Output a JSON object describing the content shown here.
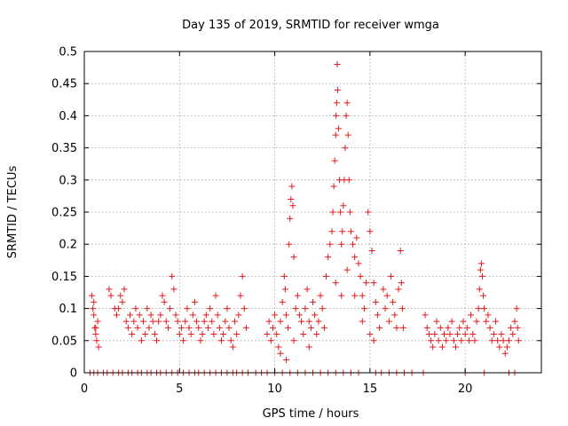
{
  "chart_data": {
    "type": "scatter",
    "title": "Day 135 of 2019, SRMTID for receiver wmga",
    "xlabel": "GPS time / hours",
    "ylabel": "SRMTID / TECUs",
    "xlim": [
      0,
      24
    ],
    "ylim": [
      0,
      0.5
    ],
    "xticks": [
      0,
      5,
      10,
      15,
      20
    ],
    "xtick_labels": [
      "0",
      "5",
      "10",
      "15",
      "20"
    ],
    "yticks": [
      0,
      0.05,
      0.1,
      0.15,
      0.2,
      0.25,
      0.3,
      0.35,
      0.4,
      0.45,
      0.5
    ],
    "ytick_labels": [
      "0",
      "0.05",
      "0.1",
      "0.15",
      "0.2",
      "0.25",
      "0.3",
      "0.35",
      "0.4",
      "0.45",
      "0.5"
    ],
    "grid": true,
    "marker": "+",
    "color": "#e41a1c",
    "series": [
      {
        "name": "SRMTID",
        "points": [
          [
            0.3,
            0.0
          ],
          [
            0.5,
            0.0
          ],
          [
            0.7,
            0.0
          ],
          [
            1.0,
            0.0
          ],
          [
            1.2,
            0.0
          ],
          [
            1.5,
            0.0
          ],
          [
            1.8,
            0.0
          ],
          [
            2.0,
            0.0
          ],
          [
            2.3,
            0.0
          ],
          [
            2.5,
            0.0
          ],
          [
            2.8,
            0.0
          ],
          [
            3.0,
            0.0
          ],
          [
            3.3,
            0.0
          ],
          [
            3.5,
            0.0
          ],
          [
            3.8,
            0.0
          ],
          [
            4.0,
            0.0
          ],
          [
            4.3,
            0.0
          ],
          [
            4.6,
            0.0
          ],
          [
            4.9,
            0.0
          ],
          [
            5.2,
            0.0
          ],
          [
            5.5,
            0.0
          ],
          [
            5.8,
            0.0
          ],
          [
            6.0,
            0.0
          ],
          [
            6.3,
            0.0
          ],
          [
            6.6,
            0.0
          ],
          [
            6.9,
            0.0
          ],
          [
            7.2,
            0.0
          ],
          [
            7.5,
            0.0
          ],
          [
            7.8,
            0.0
          ],
          [
            8.0,
            0.0
          ],
          [
            8.3,
            0.0
          ],
          [
            8.6,
            0.0
          ],
          [
            9.0,
            0.0
          ],
          [
            9.3,
            0.0
          ],
          [
            9.6,
            0.0
          ],
          [
            10.0,
            0.0
          ],
          [
            10.4,
            0.0
          ],
          [
            10.8,
            0.0
          ],
          [
            11.2,
            0.0
          ],
          [
            11.6,
            0.0
          ],
          [
            12.0,
            0.0
          ],
          [
            12.4,
            0.0
          ],
          [
            12.8,
            0.0
          ],
          [
            13.2,
            0.0
          ],
          [
            13.6,
            0.0
          ],
          [
            14.0,
            0.0
          ],
          [
            14.4,
            0.0
          ],
          [
            15.3,
            0.0
          ],
          [
            15.6,
            0.0
          ],
          [
            16.0,
            0.0
          ],
          [
            16.4,
            0.0
          ],
          [
            16.8,
            0.0
          ],
          [
            17.2,
            0.0
          ],
          [
            17.8,
            0.0
          ],
          [
            20.0,
            0.0
          ],
          [
            21.0,
            0.0
          ],
          [
            22.3,
            0.0
          ],
          [
            22.6,
            0.0
          ],
          [
            0.4,
            0.12
          ],
          [
            0.45,
            0.1
          ],
          [
            0.5,
            0.09
          ],
          [
            0.55,
            0.07
          ],
          [
            0.6,
            0.06
          ],
          [
            0.65,
            0.05
          ],
          [
            0.7,
            0.08
          ],
          [
            0.75,
            0.04
          ],
          [
            0.5,
            0.11
          ],
          [
            0.6,
            0.07
          ],
          [
            1.3,
            0.13
          ],
          [
            1.4,
            0.12
          ],
          [
            1.6,
            0.1
          ],
          [
            1.7,
            0.09
          ],
          [
            1.8,
            0.1
          ],
          [
            1.9,
            0.12
          ],
          [
            2.0,
            0.11
          ],
          [
            2.1,
            0.13
          ],
          [
            2.2,
            0.08
          ],
          [
            2.3,
            0.07
          ],
          [
            2.4,
            0.09
          ],
          [
            2.5,
            0.06
          ],
          [
            2.6,
            0.08
          ],
          [
            2.7,
            0.1
          ],
          [
            2.8,
            0.07
          ],
          [
            2.9,
            0.09
          ],
          [
            3.0,
            0.05
          ],
          [
            3.1,
            0.08
          ],
          [
            3.2,
            0.06
          ],
          [
            3.3,
            0.1
          ],
          [
            3.4,
            0.07
          ],
          [
            3.5,
            0.09
          ],
          [
            3.6,
            0.08
          ],
          [
            3.7,
            0.06
          ],
          [
            3.8,
            0.05
          ],
          [
            3.9,
            0.08
          ],
          [
            4.0,
            0.09
          ],
          [
            4.1,
            0.12
          ],
          [
            4.2,
            0.11
          ],
          [
            4.3,
            0.08
          ],
          [
            4.4,
            0.07
          ],
          [
            4.5,
            0.1
          ],
          [
            4.6,
            0.15
          ],
          [
            4.7,
            0.13
          ],
          [
            4.8,
            0.09
          ],
          [
            4.9,
            0.08
          ],
          [
            5.0,
            0.06
          ],
          [
            5.1,
            0.07
          ],
          [
            5.2,
            0.05
          ],
          [
            5.3,
            0.08
          ],
          [
            5.4,
            0.1
          ],
          [
            5.5,
            0.07
          ],
          [
            5.6,
            0.06
          ],
          [
            5.7,
            0.09
          ],
          [
            5.8,
            0.11
          ],
          [
            5.9,
            0.08
          ],
          [
            6.0,
            0.07
          ],
          [
            6.1,
            0.05
          ],
          [
            6.2,
            0.06
          ],
          [
            6.3,
            0.08
          ],
          [
            6.4,
            0.09
          ],
          [
            6.5,
            0.07
          ],
          [
            6.6,
            0.1
          ],
          [
            6.7,
            0.08
          ],
          [
            6.8,
            0.06
          ],
          [
            6.9,
            0.12
          ],
          [
            7.0,
            0.09
          ],
          [
            7.1,
            0.07
          ],
          [
            7.2,
            0.05
          ],
          [
            7.3,
            0.06
          ],
          [
            7.4,
            0.08
          ],
          [
            7.5,
            0.1
          ],
          [
            7.6,
            0.07
          ],
          [
            7.7,
            0.05
          ],
          [
            7.8,
            0.04
          ],
          [
            7.9,
            0.08
          ],
          [
            8.0,
            0.06
          ],
          [
            8.1,
            0.09
          ],
          [
            8.2,
            0.12
          ],
          [
            8.3,
            0.15
          ],
          [
            8.4,
            0.1
          ],
          [
            8.5,
            0.07
          ],
          [
            9.6,
            0.06
          ],
          [
            9.7,
            0.08
          ],
          [
            9.8,
            0.05
          ],
          [
            9.9,
            0.07
          ],
          [
            10.0,
            0.09
          ],
          [
            10.1,
            0.06
          ],
          [
            10.2,
            0.04
          ],
          [
            10.3,
            0.08
          ],
          [
            10.4,
            0.11
          ],
          [
            10.5,
            0.15
          ],
          [
            10.55,
            0.13
          ],
          [
            10.6,
            0.09
          ],
          [
            10.7,
            0.07
          ],
          [
            10.75,
            0.2
          ],
          [
            10.8,
            0.24
          ],
          [
            10.85,
            0.27
          ],
          [
            10.9,
            0.29
          ],
          [
            10.95,
            0.26
          ],
          [
            11.0,
            0.18
          ],
          [
            11.1,
            0.1
          ],
          [
            11.2,
            0.12
          ],
          [
            11.3,
            0.09
          ],
          [
            11.4,
            0.08
          ],
          [
            11.5,
            0.06
          ],
          [
            11.6,
            0.1
          ],
          [
            11.7,
            0.13
          ],
          [
            11.8,
            0.08
          ],
          [
            11.9,
            0.07
          ],
          [
            12.0,
            0.11
          ],
          [
            12.1,
            0.09
          ],
          [
            12.2,
            0.06
          ],
          [
            12.3,
            0.08
          ],
          [
            12.4,
            0.12
          ],
          [
            12.5,
            0.1
          ],
          [
            12.6,
            0.07
          ],
          [
            10.3,
            0.03
          ],
          [
            10.6,
            0.02
          ],
          [
            11.0,
            0.05
          ],
          [
            11.8,
            0.04
          ],
          [
            12.7,
            0.15
          ],
          [
            12.8,
            0.18
          ],
          [
            12.9,
            0.2
          ],
          [
            13.0,
            0.22
          ],
          [
            13.05,
            0.25
          ],
          [
            13.1,
            0.29
          ],
          [
            13.15,
            0.33
          ],
          [
            13.2,
            0.37
          ],
          [
            13.22,
            0.4
          ],
          [
            13.25,
            0.42
          ],
          [
            13.28,
            0.48
          ],
          [
            13.3,
            0.44
          ],
          [
            13.35,
            0.38
          ],
          [
            13.4,
            0.3
          ],
          [
            13.45,
            0.25
          ],
          [
            13.5,
            0.2
          ],
          [
            13.55,
            0.22
          ],
          [
            13.6,
            0.26
          ],
          [
            13.65,
            0.3
          ],
          [
            13.7,
            0.35
          ],
          [
            13.75,
            0.4
          ],
          [
            13.8,
            0.42
          ],
          [
            13.85,
            0.37
          ],
          [
            13.9,
            0.3
          ],
          [
            13.95,
            0.25
          ],
          [
            14.0,
            0.22
          ],
          [
            14.1,
            0.2
          ],
          [
            14.2,
            0.18
          ],
          [
            14.3,
            0.21
          ],
          [
            14.4,
            0.17
          ],
          [
            14.5,
            0.15
          ],
          [
            14.6,
            0.12
          ],
          [
            14.7,
            0.1
          ],
          [
            14.8,
            0.14
          ],
          [
            14.9,
            0.25
          ],
          [
            15.0,
            0.22
          ],
          [
            15.1,
            0.19
          ],
          [
            15.2,
            0.14
          ],
          [
            15.3,
            0.11
          ],
          [
            15.4,
            0.09
          ],
          [
            15.5,
            0.07
          ],
          [
            13.2,
            0.14
          ],
          [
            13.5,
            0.12
          ],
          [
            13.8,
            0.16
          ],
          [
            14.2,
            0.12
          ],
          [
            14.6,
            0.08
          ],
          [
            15.0,
            0.06
          ],
          [
            15.2,
            0.05
          ],
          [
            15.7,
            0.13
          ],
          [
            15.8,
            0.1
          ],
          [
            15.9,
            0.12
          ],
          [
            16.0,
            0.08
          ],
          [
            16.1,
            0.15
          ],
          [
            16.2,
            0.11
          ],
          [
            16.3,
            0.09
          ],
          [
            16.4,
            0.07
          ],
          [
            16.5,
            0.13
          ],
          [
            16.6,
            0.19
          ],
          [
            16.65,
            0.14
          ],
          [
            16.7,
            0.1
          ],
          [
            16.75,
            0.07
          ],
          [
            17.9,
            0.09
          ],
          [
            18.0,
            0.07
          ],
          [
            18.1,
            0.06
          ],
          [
            18.2,
            0.05
          ],
          [
            18.3,
            0.04
          ],
          [
            18.4,
            0.06
          ],
          [
            18.5,
            0.08
          ],
          [
            18.6,
            0.05
          ],
          [
            18.7,
            0.07
          ],
          [
            18.8,
            0.04
          ],
          [
            18.9,
            0.06
          ],
          [
            19.0,
            0.05
          ],
          [
            19.1,
            0.07
          ],
          [
            19.2,
            0.06
          ],
          [
            19.3,
            0.08
          ],
          [
            19.4,
            0.05
          ],
          [
            19.5,
            0.04
          ],
          [
            19.6,
            0.06
          ],
          [
            19.7,
            0.07
          ],
          [
            19.8,
            0.05
          ],
          [
            19.9,
            0.08
          ],
          [
            20.0,
            0.06
          ],
          [
            20.1,
            0.07
          ],
          [
            20.2,
            0.05
          ],
          [
            20.3,
            0.09
          ],
          [
            20.4,
            0.06
          ],
          [
            20.5,
            0.05
          ],
          [
            20.6,
            0.08
          ],
          [
            20.7,
            0.1
          ],
          [
            20.75,
            0.13
          ],
          [
            20.8,
            0.16
          ],
          [
            20.85,
            0.17
          ],
          [
            20.9,
            0.15
          ],
          [
            20.95,
            0.12
          ],
          [
            21.0,
            0.1
          ],
          [
            21.1,
            0.08
          ],
          [
            21.2,
            0.09
          ],
          [
            21.3,
            0.07
          ],
          [
            21.4,
            0.05
          ],
          [
            21.5,
            0.06
          ],
          [
            21.6,
            0.08
          ],
          [
            21.7,
            0.05
          ],
          [
            21.8,
            0.04
          ],
          [
            21.9,
            0.06
          ],
          [
            22.0,
            0.05
          ],
          [
            22.1,
            0.03
          ],
          [
            22.2,
            0.04
          ],
          [
            22.3,
            0.05
          ],
          [
            22.4,
            0.07
          ],
          [
            22.5,
            0.06
          ],
          [
            22.6,
            0.08
          ],
          [
            22.7,
            0.1
          ],
          [
            22.75,
            0.07
          ],
          [
            22.8,
            0.05
          ]
        ]
      }
    ]
  }
}
